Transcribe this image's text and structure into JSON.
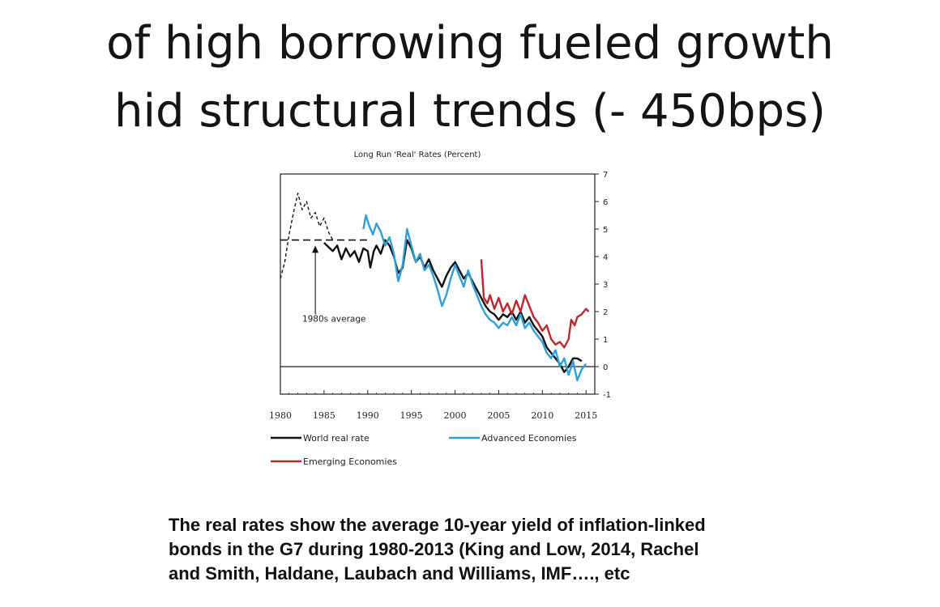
{
  "slide": {
    "title_line1": "of high borrowing fueled growth",
    "title_line2": "hid structural trends (- 450bps)",
    "caption_line1": "The real rates show the average  10-year yield of inflation-linked",
    "caption_line2": "bonds in the G7 during 1980-2013  (King and Low, 2014, Rachel",
    "caption_line3": "and Smith,  Haldane, Laubach and Williams, IMF…., etc"
  },
  "chart_data": {
    "type": "line",
    "title": "Long Run 'Real' Rates (Percent)",
    "xlabel": "",
    "ylabel": "",
    "xlim": [
      1980,
      2016
    ],
    "ylim": [
      -1,
      7
    ],
    "x_ticks": [
      1980,
      1985,
      1990,
      1995,
      2000,
      2005,
      2010,
      2015
    ],
    "y_ticks": [
      7,
      6,
      5,
      4,
      3,
      2,
      1,
      0,
      -1
    ],
    "y_axis_position": "right",
    "grid": false,
    "legend_position": "bottom",
    "annotations": [
      {
        "text": "1980s average",
        "value": 4.6,
        "x_range": [
          1980,
          1990
        ],
        "style": "dashed",
        "arrow_to": [
          1984,
          4.4
        ]
      }
    ],
    "series": [
      {
        "name": "World real rate",
        "color": "#111111",
        "style": "solid",
        "points": [
          [
            1985,
            4.5
          ],
          [
            1986,
            4.2
          ],
          [
            1986.5,
            4.4
          ],
          [
            1987,
            3.9
          ],
          [
            1987.5,
            4.3
          ],
          [
            1988,
            4.0
          ],
          [
            1988.5,
            4.2
          ],
          [
            1989,
            3.8
          ],
          [
            1989.5,
            4.3
          ],
          [
            1990,
            4.2
          ],
          [
            1990.3,
            3.6
          ],
          [
            1990.7,
            4.2
          ],
          [
            1991,
            4.4
          ],
          [
            1991.5,
            4.1
          ],
          [
            1992,
            4.6
          ],
          [
            1992.5,
            4.4
          ],
          [
            1993,
            4.0
          ],
          [
            1993.5,
            3.4
          ],
          [
            1994,
            3.6
          ],
          [
            1994.5,
            4.6
          ],
          [
            1995,
            4.3
          ],
          [
            1995.5,
            3.8
          ],
          [
            1996,
            4.0
          ],
          [
            1996.5,
            3.6
          ],
          [
            1997,
            3.9
          ],
          [
            1997.5,
            3.5
          ],
          [
            1998,
            3.2
          ],
          [
            1998.5,
            2.9
          ],
          [
            1999,
            3.3
          ],
          [
            1999.5,
            3.6
          ],
          [
            2000,
            3.8
          ],
          [
            2000.5,
            3.5
          ],
          [
            2001,
            3.2
          ],
          [
            2001.5,
            3.4
          ],
          [
            2002,
            3.1
          ],
          [
            2002.5,
            2.8
          ],
          [
            2003,
            2.5
          ],
          [
            2003.5,
            2.2
          ],
          [
            2004,
            2.0
          ],
          [
            2004.5,
            1.9
          ],
          [
            2005,
            1.7
          ],
          [
            2005.5,
            1.9
          ],
          [
            2006,
            1.8
          ],
          [
            2006.5,
            2.0
          ],
          [
            2007,
            1.7
          ],
          [
            2007.5,
            2.0
          ],
          [
            2008,
            1.6
          ],
          [
            2008.5,
            1.8
          ],
          [
            2009,
            1.5
          ],
          [
            2009.5,
            1.3
          ],
          [
            2010,
            1.1
          ],
          [
            2010.5,
            0.7
          ],
          [
            2011,
            0.5
          ],
          [
            2011.5,
            0.3
          ],
          [
            2012,
            0.1
          ],
          [
            2012.5,
            -0.2
          ],
          [
            2013,
            0.0
          ],
          [
            2013.5,
            0.3
          ],
          [
            2014,
            0.3
          ],
          [
            2014.5,
            0.2
          ]
        ]
      },
      {
        "name": "Advanced Economies",
        "color": "#2f9fdc",
        "style": "solid",
        "points": [
          [
            1989.5,
            5.0
          ],
          [
            1989.8,
            5.5
          ],
          [
            1990.2,
            5.1
          ],
          [
            1990.6,
            4.8
          ],
          [
            1991,
            5.2
          ],
          [
            1991.5,
            4.9
          ],
          [
            1992,
            4.4
          ],
          [
            1992.5,
            4.7
          ],
          [
            1993,
            4.1
          ],
          [
            1993.5,
            3.1
          ],
          [
            1994,
            3.7
          ],
          [
            1994.5,
            5.0
          ],
          [
            1995,
            4.4
          ],
          [
            1995.5,
            3.8
          ],
          [
            1996,
            4.1
          ],
          [
            1996.5,
            3.5
          ],
          [
            1997,
            3.7
          ],
          [
            1997.5,
            3.3
          ],
          [
            1998,
            2.8
          ],
          [
            1998.5,
            2.2
          ],
          [
            1999,
            2.6
          ],
          [
            1999.5,
            3.2
          ],
          [
            2000,
            3.7
          ],
          [
            2000.5,
            3.3
          ],
          [
            2001,
            2.9
          ],
          [
            2001.5,
            3.5
          ],
          [
            2002,
            3.0
          ],
          [
            2002.5,
            2.6
          ],
          [
            2003,
            2.2
          ],
          [
            2003.5,
            1.9
          ],
          [
            2004,
            1.7
          ],
          [
            2004.5,
            1.6
          ],
          [
            2005,
            1.4
          ],
          [
            2005.5,
            1.6
          ],
          [
            2006,
            1.5
          ],
          [
            2006.5,
            1.8
          ],
          [
            2007,
            1.5
          ],
          [
            2007.5,
            1.9
          ],
          [
            2008,
            1.4
          ],
          [
            2008.5,
            1.6
          ],
          [
            2009,
            1.3
          ],
          [
            2009.5,
            1.1
          ],
          [
            2010,
            0.9
          ],
          [
            2010.5,
            0.5
          ],
          [
            2011,
            0.3
          ],
          [
            2011.5,
            0.6
          ],
          [
            2012,
            0.0
          ],
          [
            2012.5,
            0.3
          ],
          [
            2013,
            -0.3
          ],
          [
            2013.5,
            0.2
          ],
          [
            2014,
            -0.5
          ],
          [
            2014.5,
            -0.1
          ],
          [
            2015,
            0.1
          ]
        ]
      },
      {
        "name": "Emerging Economies",
        "color": "#c0272d",
        "style": "solid",
        "points": [
          [
            2003,
            3.9
          ],
          [
            2003.3,
            2.5
          ],
          [
            2003.7,
            2.3
          ],
          [
            2004,
            2.6
          ],
          [
            2004.5,
            2.1
          ],
          [
            2005,
            2.5
          ],
          [
            2005.5,
            2.0
          ],
          [
            2006,
            2.3
          ],
          [
            2006.5,
            1.9
          ],
          [
            2007,
            2.4
          ],
          [
            2007.5,
            2.0
          ],
          [
            2008,
            2.6
          ],
          [
            2008.5,
            2.2
          ],
          [
            2009,
            1.8
          ],
          [
            2009.5,
            1.6
          ],
          [
            2010,
            1.3
          ],
          [
            2010.5,
            1.5
          ],
          [
            2011,
            1.0
          ],
          [
            2011.5,
            0.8
          ],
          [
            2012,
            0.9
          ],
          [
            2012.5,
            0.7
          ],
          [
            2013,
            1.0
          ],
          [
            2013.3,
            1.7
          ],
          [
            2013.7,
            1.5
          ],
          [
            2014,
            1.8
          ],
          [
            2014.5,
            1.9
          ],
          [
            2015,
            2.1
          ],
          [
            2015.3,
            2.0
          ]
        ]
      },
      {
        "name": "1980s real rate (dashed)",
        "color": "#111111",
        "style": "dashed",
        "points": [
          [
            1980,
            3.2
          ],
          [
            1980.5,
            3.8
          ],
          [
            1981,
            4.8
          ],
          [
            1981.5,
            5.6
          ],
          [
            1982,
            6.3
          ],
          [
            1982.5,
            5.7
          ],
          [
            1983,
            6.0
          ],
          [
            1983.5,
            5.4
          ],
          [
            1984,
            5.6
          ],
          [
            1984.5,
            5.1
          ],
          [
            1985,
            5.4
          ],
          [
            1985.5,
            4.9
          ],
          [
            1986,
            4.6
          ]
        ]
      }
    ]
  }
}
